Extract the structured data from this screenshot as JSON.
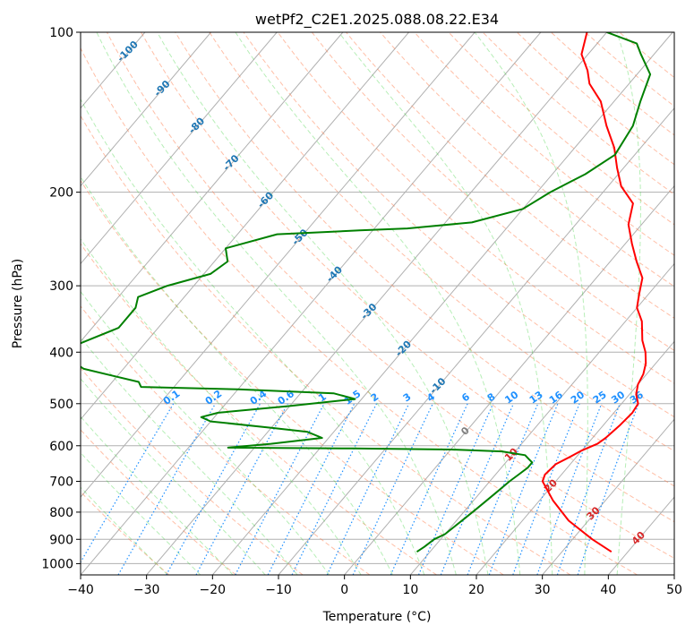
{
  "chart_data": {
    "type": "line",
    "title": "wetPf2_C2E1.2025.088.08.22.E34",
    "xlabel": "Temperature (°C)",
    "ylabel": "Pressure (hPa)",
    "xlim": [
      -40,
      50
    ],
    "ylim": [
      1050,
      100
    ],
    "y_scale": "log",
    "skew": true,
    "grid": true,
    "x_ticks": [
      -40,
      -30,
      -20,
      -10,
      0,
      10,
      20,
      30,
      40,
      50
    ],
    "y_ticks": [
      100,
      200,
      300,
      400,
      500,
      600,
      700,
      800,
      900,
      1000
    ],
    "colors": {
      "temperature": "#ff0000",
      "dewpoint": "#008000",
      "dry_adiabat": "#ff7f50",
      "moist_adiabat": "#32cd32",
      "mixing_ratio": "#1e90ff",
      "isotherm_label": "#1f77b4",
      "grid": "#b0b0b0"
    },
    "isotherm_labels": [
      -100,
      -90,
      -80,
      -70,
      -60,
      -50,
      -40,
      -30,
      -20,
      -10,
      0,
      10,
      20,
      30,
      40
    ],
    "mixing_ratio_labels": [
      "0.1",
      "0.2",
      "0.4",
      "0.6",
      "1",
      "1.5",
      "2",
      "3",
      "4",
      "6",
      "8",
      "10",
      "13",
      "16",
      "20",
      "25",
      "30",
      "36"
    ],
    "series": [
      {
        "name": "Temperature",
        "points": [
          [
            37.5,
            950
          ],
          [
            33,
            900
          ],
          [
            27,
            830
          ],
          [
            22,
            760
          ],
          [
            18,
            700
          ],
          [
            17.5,
            680
          ],
          [
            17.8,
            650
          ],
          [
            19,
            630
          ],
          [
            20,
            612
          ],
          [
            21.5,
            595
          ],
          [
            22,
            580
          ],
          [
            22.5,
            550
          ],
          [
            22.8,
            520
          ],
          [
            22.5,
            500
          ],
          [
            21,
            480
          ],
          [
            20,
            460
          ],
          [
            19.5,
            440
          ],
          [
            18.5,
            420
          ],
          [
            17,
            400
          ],
          [
            15,
            380
          ],
          [
            12.5,
            350
          ],
          [
            10,
            330
          ],
          [
            8.5,
            310
          ],
          [
            7,
            290
          ],
          [
            4,
            270
          ],
          [
            1,
            250
          ],
          [
            -2,
            230
          ],
          [
            -4,
            210
          ],
          [
            -8,
            195
          ],
          [
            -11,
            180
          ],
          [
            -14,
            165
          ],
          [
            -18,
            150
          ],
          [
            -22,
            135
          ],
          [
            -26,
            125
          ],
          [
            -28,
            118
          ],
          [
            -31,
            110
          ],
          [
            -33,
            100
          ]
        ]
      },
      {
        "name": "Dewpoint",
        "points": [
          [
            8,
            950
          ],
          [
            8.5,
            930
          ],
          [
            9,
            900
          ],
          [
            10,
            880
          ],
          [
            10.5,
            850
          ],
          [
            11,
            820
          ],
          [
            11.5,
            790
          ],
          [
            12,
            760
          ],
          [
            12.5,
            730
          ],
          [
            13,
            700
          ],
          [
            13.5,
            680
          ],
          [
            14,
            660
          ],
          [
            14,
            645
          ],
          [
            13,
            635
          ],
          [
            12,
            625
          ],
          [
            8,
            615
          ],
          [
            0,
            610
          ],
          [
            -15,
            607
          ],
          [
            -34,
            605
          ],
          [
            -28,
            595
          ],
          [
            -21,
            580
          ],
          [
            -24,
            565
          ],
          [
            -30,
            555
          ],
          [
            -40,
            540
          ],
          [
            -42,
            530
          ],
          [
            -40,
            520
          ],
          [
            -30,
            505
          ],
          [
            -21,
            490
          ],
          [
            -25,
            478
          ],
          [
            -40,
            470
          ],
          [
            -55,
            465
          ],
          [
            -56,
            455
          ],
          [
            -66,
            430
          ],
          [
            -72,
            400
          ],
          [
            -66,
            360
          ],
          [
            -66,
            330
          ],
          [
            -67,
            315
          ],
          [
            -64,
            300
          ],
          [
            -59,
            285
          ],
          [
            -58,
            270
          ],
          [
            -60,
            255
          ],
          [
            -54,
            240
          ],
          [
            -42,
            236
          ],
          [
            -35,
            234
          ],
          [
            -26,
            228
          ],
          [
            -20,
            215
          ],
          [
            -18,
            200
          ],
          [
            -15,
            185
          ],
          [
            -13,
            170
          ],
          [
            -14,
            150
          ],
          [
            -16,
            135
          ],
          [
            -18,
            120
          ],
          [
            -22,
            110
          ],
          [
            -24,
            105
          ],
          [
            -30,
            100
          ]
        ]
      }
    ]
  }
}
